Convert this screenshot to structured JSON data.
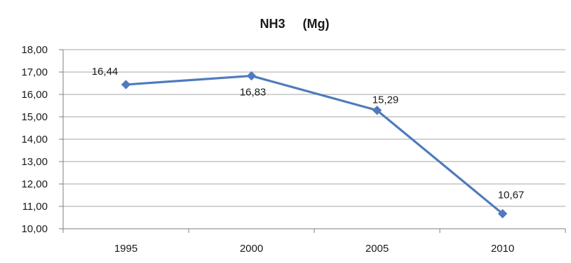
{
  "chart_data": {
    "type": "line",
    "title": "NH3     (Mg)",
    "categories": [
      "1995",
      "2000",
      "2005",
      "2010"
    ],
    "values": [
      16.44,
      16.83,
      15.29,
      10.67
    ],
    "data_labels": [
      "16,44",
      "16,83",
      "15,29",
      "10,67"
    ],
    "ylim": [
      10,
      18
    ],
    "y_ticks": [
      10,
      11,
      12,
      13,
      14,
      15,
      16,
      17,
      18
    ],
    "y_tick_labels": [
      "10,00",
      "11,00",
      "12,00",
      "13,00",
      "14,00",
      "15,00",
      "16,00",
      "17,00",
      "18,00"
    ],
    "grid": true,
    "legend": "none",
    "series_color": "#4f7bbd",
    "marker": "diamond"
  }
}
